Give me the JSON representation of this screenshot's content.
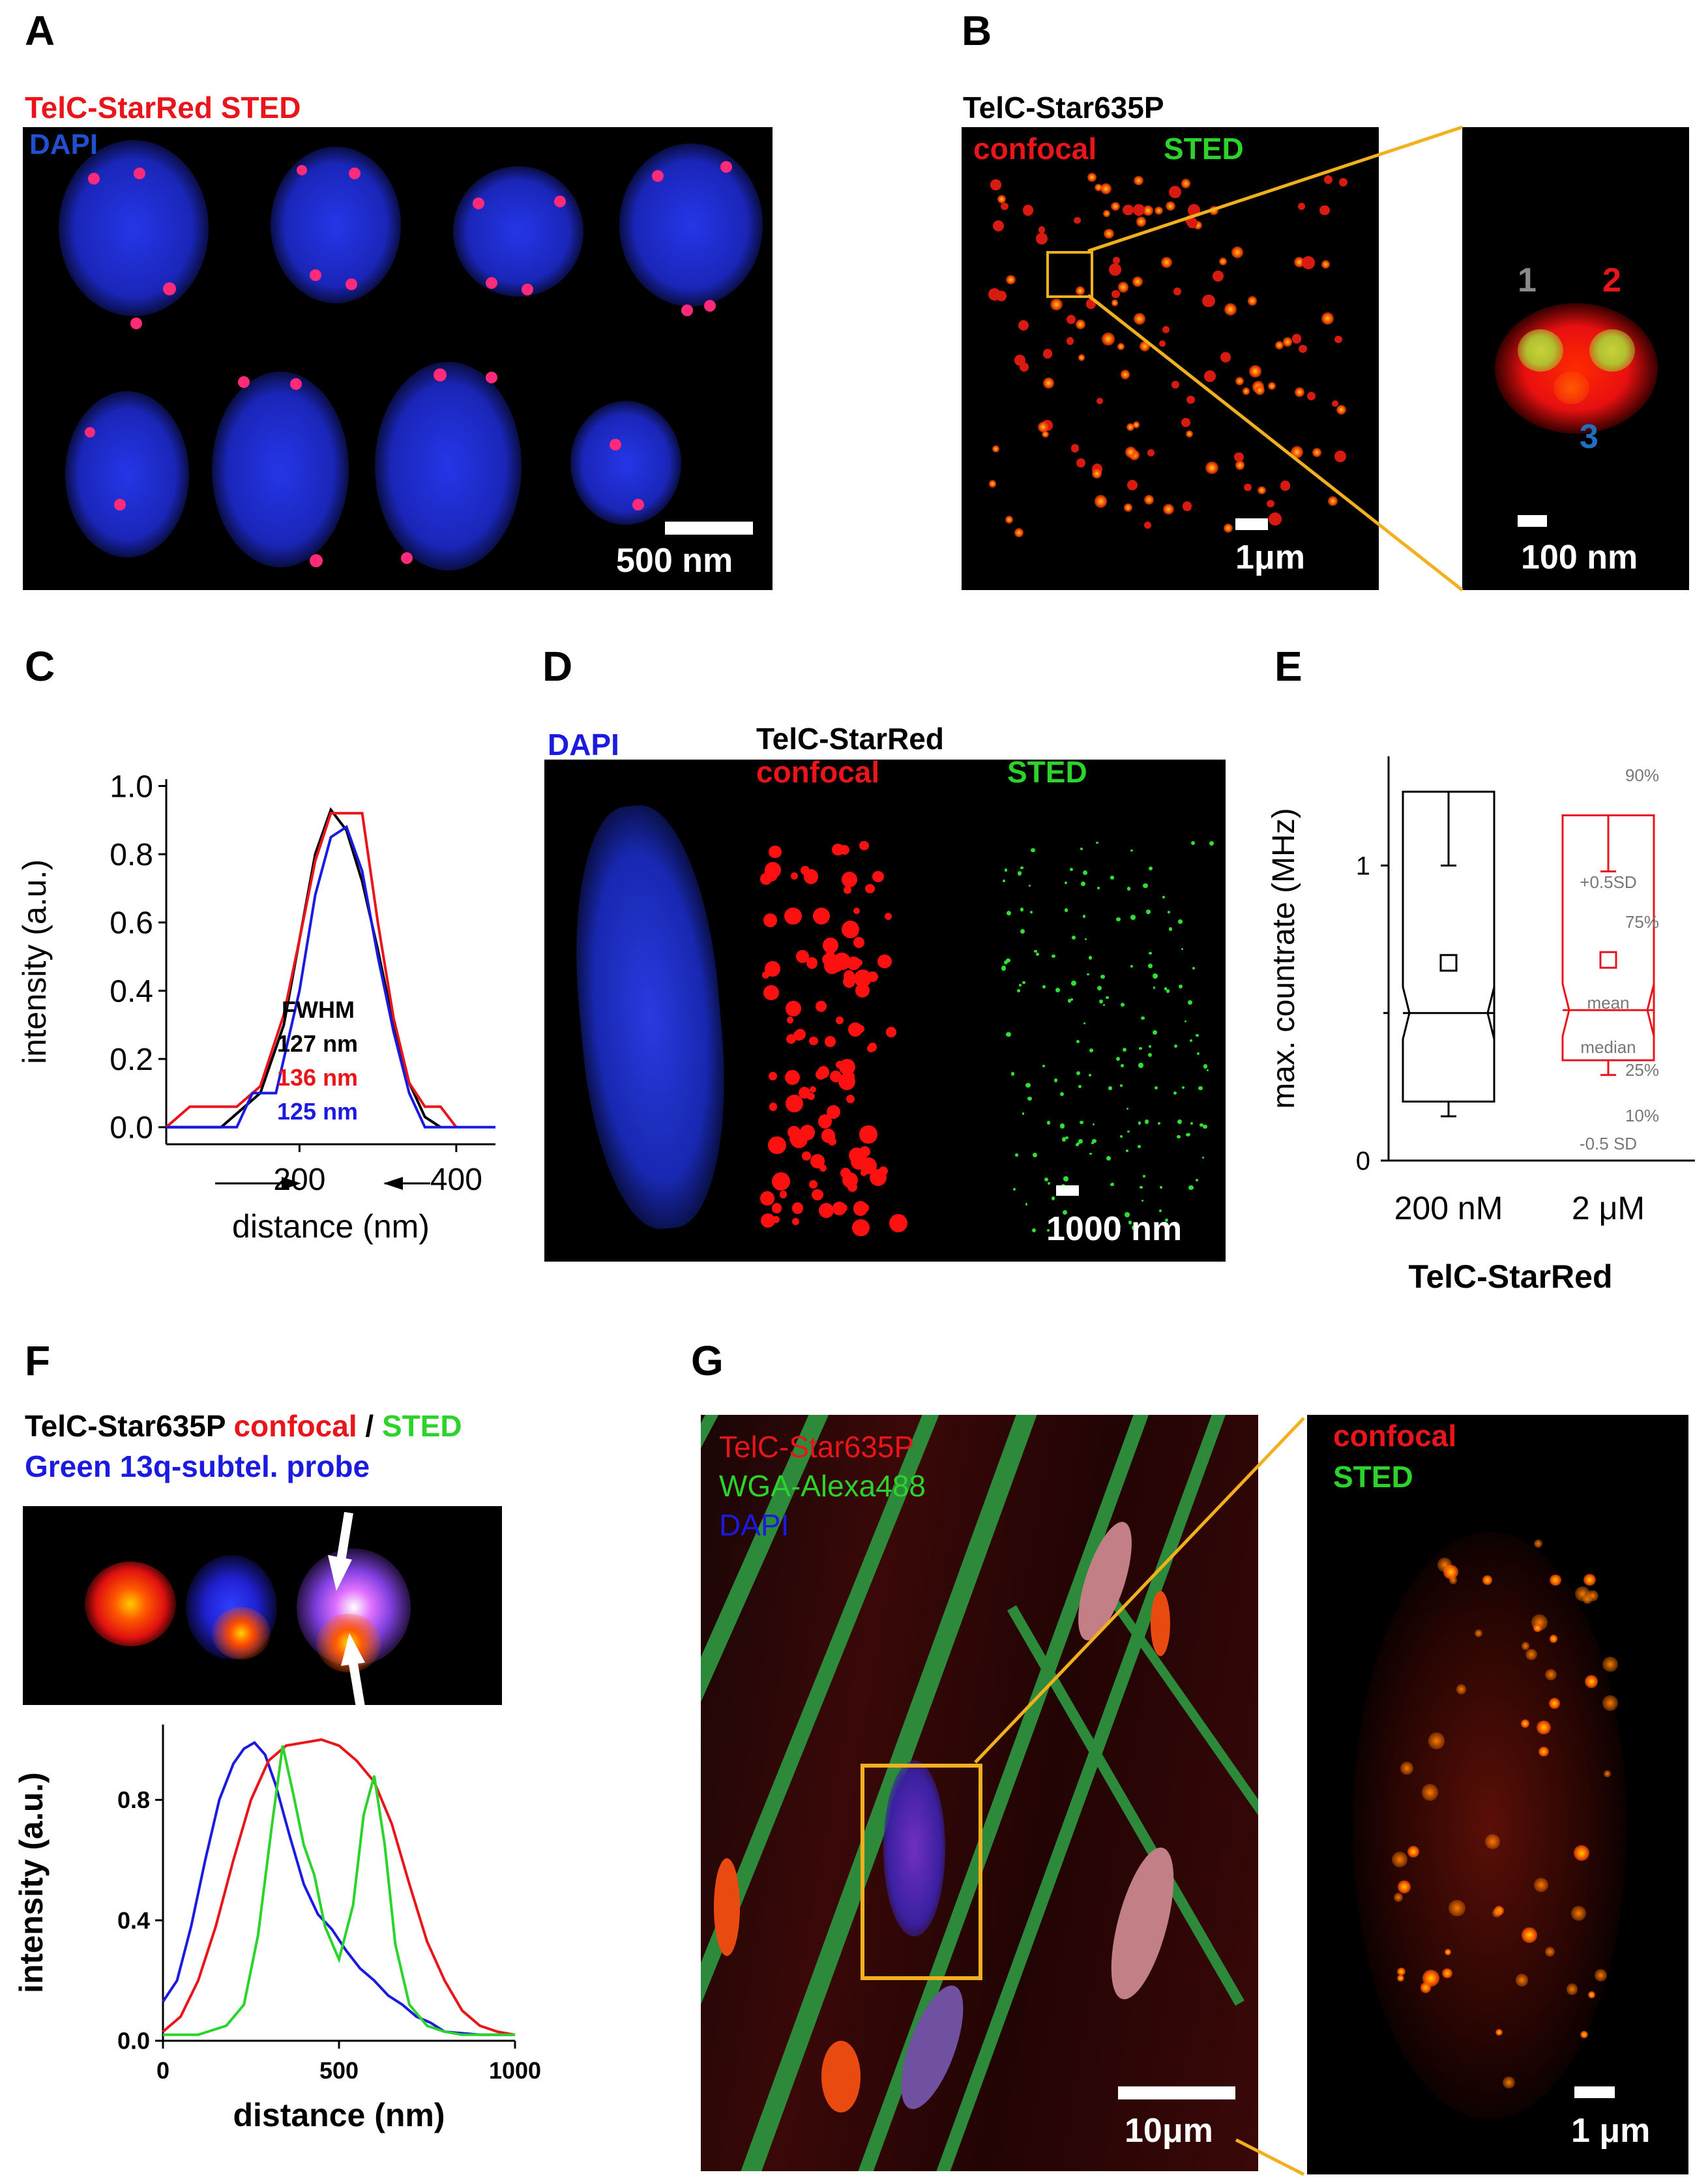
{
  "panels": {
    "a": {
      "label": "A",
      "title": "TelC-StarRed STED",
      "title_color": "#e8151b",
      "channel": "DAPI",
      "channel_color": "#2050d0",
      "scale": "500 nm"
    },
    "b": {
      "label": "B",
      "title": "TelC-Star635P",
      "confocal": "confocal",
      "sted": "STED",
      "scale_left": "1μm",
      "scale_right": "100 nm",
      "spot1": "1",
      "spot2": "2",
      "spot3": "3"
    },
    "c": {
      "label": "C",
      "fwhm": "FWHM",
      "fwhm_black": "127 nm",
      "fwhm_red": "136 nm",
      "fwhm_blue": "125 nm"
    },
    "d": {
      "label": "D",
      "dapi": "DAPI",
      "title": "TelC-StarRed",
      "confocal": "confocal",
      "sted": "STED",
      "scale": "1000 nm"
    },
    "e": {
      "label": "E",
      "title": "TelC-StarRed",
      "box_labels": {
        "p90": "90%",
        "sd_plus": "+0.5SD",
        "p75": "75%",
        "mean": "mean",
        "median": "median",
        "p25": "25%",
        "p10": "10%",
        "sd_minus": "-0.5  SD"
      }
    },
    "f": {
      "label": "F",
      "title_black": "TelC-Star635P",
      "title_red": "confocal",
      "title_sep": "/",
      "title_green": "STED",
      "probe": "Green 13q-subtel. probe"
    },
    "g": {
      "label": "G",
      "leg1": "TelC-Star635P",
      "leg2": "WGA-Alexa488",
      "leg3": "DAPI",
      "confocal": "confocal",
      "sted": "STED",
      "scale_left": "10μm",
      "scale_right": "1 μm"
    }
  },
  "colors": {
    "red": "#e8151b",
    "green": "#2bd32b",
    "blue": "#1a1ae0",
    "orange": "#f2b01e"
  },
  "chart_data": [
    {
      "id": "C",
      "type": "line",
      "xlabel": "distance (nm)",
      "ylabel": "intensity (a.u.)",
      "xlim": [
        30,
        450
      ],
      "ylim": [
        -0.05,
        1.02
      ],
      "xticks": [
        200,
        400
      ],
      "yticks": [
        0.0,
        0.2,
        0.4,
        0.6,
        0.8,
        1.0
      ],
      "series": [
        {
          "color": "#000000",
          "x": [
            30,
            100,
            150,
            180,
            200,
            220,
            240,
            260,
            280,
            300,
            320,
            340,
            360,
            380
          ],
          "y": [
            0,
            0,
            0.1,
            0.3,
            0.55,
            0.8,
            0.93,
            0.87,
            0.72,
            0.52,
            0.3,
            0.13,
            0.03,
            0
          ]
        },
        {
          "color": "#e8151b",
          "x": [
            30,
            60,
            120,
            150,
            180,
            200,
            220,
            240,
            260,
            280,
            300,
            320,
            340,
            360,
            380,
            400
          ],
          "y": [
            0,
            0.06,
            0.06,
            0.12,
            0.33,
            0.55,
            0.78,
            0.92,
            0.92,
            0.92,
            0.6,
            0.32,
            0.13,
            0.06,
            0.06,
            0
          ]
        },
        {
          "color": "#1a1ae0",
          "x": [
            30,
            80,
            120,
            140,
            170,
            200,
            220,
            240,
            260,
            280,
            300,
            320,
            340,
            360,
            380,
            450
          ],
          "y": [
            0,
            0,
            0,
            0.1,
            0.1,
            0.4,
            0.68,
            0.85,
            0.88,
            0.75,
            0.5,
            0.28,
            0.1,
            0,
            0,
            0
          ]
        }
      ]
    },
    {
      "id": "E",
      "type": "box",
      "ylabel": "max. countrate (MHz)",
      "categories": [
        "200 nM",
        "2 μM"
      ],
      "ylim": [
        0,
        1.37
      ],
      "yticks": [
        0,
        1
      ],
      "boxes": [
        {
          "color": "#000000",
          "p10": 0.15,
          "p25": 0.2,
          "median": 0.5,
          "mean": 0.67,
          "p75": 1.0,
          "p90": 1.25
        },
        {
          "color": "#e8151b",
          "p10": 0.29,
          "p25": 0.34,
          "median": 0.51,
          "mean": 0.68,
          "p75": 0.98,
          "p90": 1.17
        }
      ]
    },
    {
      "id": "F",
      "type": "line",
      "xlabel": "distance (nm)",
      "ylabel": "intensity (a.u.)",
      "xlim": [
        0,
        1000
      ],
      "ylim": [
        0,
        1.05
      ],
      "xticks": [
        0,
        500,
        1000
      ],
      "yticks": [
        0.0,
        0.4,
        0.8
      ],
      "series": [
        {
          "color": "#1a1ae0",
          "x": [
            0,
            40,
            80,
            120,
            160,
            200,
            230,
            260,
            290,
            320,
            360,
            400,
            440,
            480,
            520,
            560,
            600,
            640,
            680,
            720,
            760,
            800,
            900,
            1000
          ],
          "y": [
            0.13,
            0.2,
            0.38,
            0.6,
            0.8,
            0.92,
            0.97,
            0.99,
            0.95,
            0.85,
            0.68,
            0.52,
            0.42,
            0.37,
            0.3,
            0.24,
            0.2,
            0.15,
            0.12,
            0.08,
            0.06,
            0.03,
            0.02,
            0.02
          ]
        },
        {
          "color": "#e8151b",
          "x": [
            0,
            50,
            100,
            150,
            200,
            250,
            300,
            350,
            400,
            450,
            500,
            550,
            600,
            650,
            700,
            750,
            800,
            850,
            900,
            950,
            1000
          ],
          "y": [
            0.03,
            0.08,
            0.2,
            0.38,
            0.6,
            0.8,
            0.93,
            0.98,
            0.99,
            1.0,
            0.98,
            0.93,
            0.86,
            0.72,
            0.52,
            0.33,
            0.2,
            0.1,
            0.05,
            0.03,
            0.02
          ]
        },
        {
          "color": "#2bd32b",
          "x": [
            0,
            100,
            180,
            230,
            270,
            310,
            340,
            370,
            400,
            430,
            460,
            500,
            540,
            570,
            600,
            630,
            660,
            700,
            750,
            800,
            850,
            900,
            1000
          ],
          "y": [
            0.02,
            0.02,
            0.05,
            0.12,
            0.35,
            0.72,
            0.98,
            0.82,
            0.65,
            0.55,
            0.38,
            0.27,
            0.45,
            0.75,
            0.88,
            0.65,
            0.32,
            0.12,
            0.05,
            0.03,
            0.02,
            0.02,
            0.02
          ]
        }
      ]
    }
  ]
}
